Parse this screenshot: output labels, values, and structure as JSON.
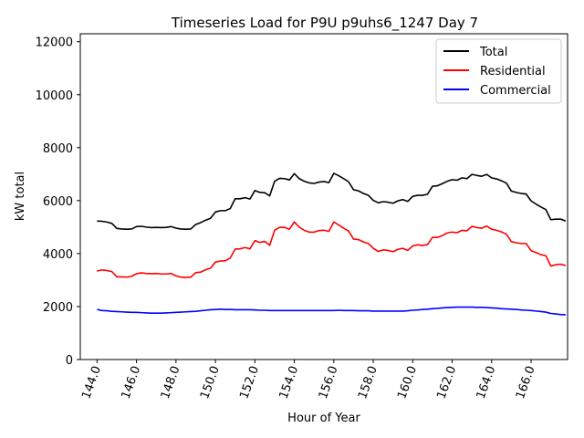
{
  "chart_data": {
    "type": "line",
    "title": "Timeseries Load for P9U p9uhs6_1247  Day 7",
    "xlabel": "Hour of Year",
    "ylabel": "kW total",
    "xlim": [
      143.15,
      167.85
    ],
    "ylim": [
      0,
      12300
    ],
    "xticks": [
      144,
      146,
      148,
      150,
      152,
      154,
      156,
      158,
      160,
      162,
      164,
      166
    ],
    "xtick_labels": [
      "144.0",
      "146.0",
      "148.0",
      "150.0",
      "152.0",
      "154.0",
      "156.0",
      "158.0",
      "160.0",
      "162.0",
      "164.0",
      "166.0"
    ],
    "yticks": [
      0,
      2000,
      4000,
      6000,
      8000,
      10000,
      12000
    ],
    "ytick_labels": [
      "0",
      "2000",
      "4000",
      "6000",
      "8000",
      "10000",
      "12000"
    ],
    "legend_position": "top-right",
    "x_start": 144.0,
    "x_step": 0.25,
    "series": [
      {
        "name": "Total",
        "color": "#000000",
        "values": [
          5230,
          5220,
          5190,
          5140,
          4950,
          4930,
          4920,
          4930,
          5020,
          5030,
          5000,
          4980,
          4990,
          4980,
          4990,
          5020,
          4960,
          4930,
          4920,
          4930,
          5100,
          5170,
          5260,
          5330,
          5570,
          5620,
          5620,
          5700,
          6070,
          6070,
          6110,
          6060,
          6380,
          6310,
          6300,
          6180,
          6730,
          6840,
          6830,
          6780,
          7020,
          6830,
          6730,
          6670,
          6650,
          6700,
          6720,
          6680,
          7030,
          6940,
          6830,
          6710,
          6410,
          6370,
          6270,
          6200,
          6010,
          5920,
          5960,
          5940,
          5900,
          5990,
          6040,
          5970,
          6160,
          6200,
          6200,
          6240,
          6540,
          6560,
          6640,
          6730,
          6790,
          6770,
          6860,
          6830,
          6990,
          6950,
          6920,
          6990,
          6860,
          6820,
          6750,
          6660,
          6360,
          6310,
          6270,
          6250,
          5990,
          5870,
          5760,
          5660,
          5280,
          5300,
          5300,
          5230
        ]
      },
      {
        "name": "Residential",
        "color": "#ff0000",
        "values": [
          3340,
          3380,
          3360,
          3320,
          3120,
          3120,
          3110,
          3140,
          3240,
          3270,
          3250,
          3240,
          3250,
          3230,
          3230,
          3250,
          3160,
          3110,
          3100,
          3110,
          3280,
          3300,
          3390,
          3450,
          3680,
          3720,
          3730,
          3830,
          4170,
          4180,
          4230,
          4180,
          4490,
          4420,
          4460,
          4310,
          4880,
          4990,
          4990,
          4920,
          5190,
          5000,
          4880,
          4810,
          4810,
          4870,
          4880,
          4840,
          5190,
          5080,
          4960,
          4850,
          4550,
          4530,
          4440,
          4380,
          4200,
          4080,
          4140,
          4120,
          4070,
          4160,
          4200,
          4120,
          4290,
          4330,
          4310,
          4340,
          4610,
          4610,
          4680,
          4780,
          4810,
          4790,
          4880,
          4860,
          5030,
          4980,
          4960,
          5040,
          4920,
          4880,
          4820,
          4730,
          4450,
          4410,
          4380,
          4380,
          4110,
          4040,
          3960,
          3920,
          3530,
          3580,
          3600,
          3550
        ]
      },
      {
        "name": "Commercial",
        "color": "#0000ff",
        "values": [
          1890,
          1850,
          1840,
          1820,
          1810,
          1800,
          1790,
          1780,
          1780,
          1770,
          1760,
          1750,
          1750,
          1750,
          1760,
          1770,
          1780,
          1790,
          1800,
          1810,
          1820,
          1840,
          1860,
          1880,
          1890,
          1900,
          1890,
          1890,
          1880,
          1880,
          1880,
          1880,
          1870,
          1860,
          1860,
          1850,
          1850,
          1850,
          1850,
          1850,
          1850,
          1850,
          1850,
          1850,
          1850,
          1850,
          1850,
          1850,
          1850,
          1860,
          1850,
          1850,
          1850,
          1840,
          1840,
          1840,
          1830,
          1830,
          1830,
          1830,
          1830,
          1830,
          1830,
          1840,
          1860,
          1870,
          1890,
          1900,
          1920,
          1930,
          1950,
          1960,
          1970,
          1980,
          1980,
          1980,
          1980,
          1970,
          1970,
          1960,
          1950,
          1940,
          1920,
          1910,
          1900,
          1890,
          1870,
          1860,
          1850,
          1830,
          1810,
          1790,
          1740,
          1720,
          1700,
          1690
        ]
      }
    ]
  }
}
